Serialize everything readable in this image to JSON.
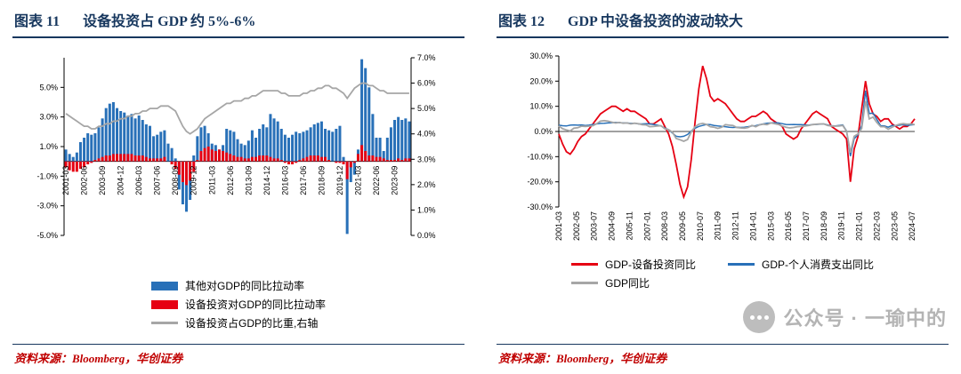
{
  "panels": [
    {
      "figure_label": "图表 11",
      "title": "设备投资占 GDP 约 5%-6%",
      "source": "资料来源：Bloomberg，华创证券"
    },
    {
      "figure_label": "图表 12",
      "title": "GDP 中设备投资的波动较大",
      "source": "资料来源：Bloomberg，华创证券",
      "watermark": "公众号 · 一瑜中的"
    }
  ],
  "colors": {
    "header_navy": "#17375E",
    "bar_blue": "#2870B8",
    "red": "#E60012",
    "gray": "#A6A6A6",
    "source_red": "#C00000",
    "watermark_gray": "#A8A8A8"
  },
  "chart_data": [
    {
      "type": "bar+line",
      "title": "设备投资占 GDP 约 5%-6%",
      "x_freq": "quarterly",
      "x_start": "2001-03",
      "x_tick_every": 5,
      "x_tick_labels": [
        "2001-03",
        "2002-06",
        "2003-09",
        "2004-12",
        "2006-03",
        "2007-06",
        "2008-09",
        "2009-12",
        "2011-03",
        "2012-06",
        "2013-09",
        "2014-12",
        "2016-03",
        "2017-06",
        "2018-09",
        "2019-12",
        "2021-03",
        "2022-06",
        "2023-09"
      ],
      "left_axis": {
        "min": -5,
        "max": 7,
        "ticks": [
          5,
          3,
          1,
          -1,
          -3,
          -5
        ],
        "format": "percent1"
      },
      "right_axis": {
        "min": 0,
        "max": 7,
        "ticks": [
          7,
          6,
          5,
          4,
          3,
          2,
          1,
          0
        ],
        "format": "percent1"
      },
      "legend_rows": [
        [
          0
        ],
        [
          1
        ],
        [
          2
        ]
      ],
      "series": [
        {
          "name": "其他对GDP的同比拉动率",
          "kind": "bar",
          "axis": "left",
          "color": "#2870B8",
          "values": [
            0.8,
            0.5,
            0.3,
            0.6,
            1.3,
            1.6,
            1.9,
            1.8,
            1.9,
            2.3,
            2.9,
            3.6,
            3.9,
            4.0,
            3.6,
            3.4,
            3.3,
            3.1,
            3.2,
            2.9,
            3.1,
            2.8,
            2.5,
            2.4,
            1.7,
            1.8,
            2.0,
            2.1,
            1.2,
            0.9,
            0.2,
            -1.9,
            -2.9,
            -3.4,
            -2.6,
            0.4,
            1.7,
            2.3,
            2.4,
            1.9,
            1.2,
            1.1,
            0.8,
            1.1,
            2.2,
            2.1,
            2.0,
            1.5,
            1.2,
            1.1,
            1.4,
            2.1,
            1.6,
            2.2,
            2.5,
            2.3,
            3.2,
            2.9,
            2.7,
            2.2,
            1.8,
            1.6,
            1.8,
            2.0,
            1.9,
            2.0,
            2.1,
            2.3,
            2.5,
            2.6,
            2.7,
            2.2,
            2.1,
            2.0,
            2.2,
            2.4,
            0.3,
            -4.9,
            -1.4,
            -0.9,
            0.8,
            6.9,
            6.3,
            5.0,
            3.2,
            1.6,
            1.6,
            0.7,
            1.6,
            2.3,
            2.8,
            3.0,
            2.8,
            2.9,
            2.7
          ]
        },
        {
          "name": "设备投资对GDP的同比拉动率",
          "kind": "bar",
          "axis": "left",
          "color": "#E60012",
          "values": [
            -0.4,
            -0.6,
            -0.7,
            -0.7,
            -0.5,
            -0.4,
            -0.2,
            -0.1,
            0.1,
            0.2,
            0.3,
            0.4,
            0.4,
            0.5,
            0.5,
            0.5,
            0.5,
            0.5,
            0.5,
            0.4,
            0.4,
            0.4,
            0.3,
            0.2,
            0.2,
            0.2,
            0.2,
            0.3,
            0.0,
            -0.2,
            -0.5,
            -0.9,
            -1.4,
            -1.6,
            -1.3,
            -0.7,
            0.1,
            0.7,
            0.9,
            1.0,
            0.8,
            0.7,
            0.8,
            0.7,
            0.6,
            0.5,
            0.4,
            0.3,
            0.3,
            0.2,
            0.2,
            0.3,
            0.3,
            0.4,
            0.4,
            0.4,
            0.3,
            0.2,
            0.2,
            0.1,
            -0.1,
            -0.2,
            -0.2,
            -0.1,
            0.1,
            0.2,
            0.3,
            0.4,
            0.4,
            0.4,
            0.3,
            0.3,
            0.1,
            0.0,
            -0.1,
            -0.1,
            -0.2,
            -1.2,
            -0.4,
            -0.1,
            0.5,
            1.1,
            0.7,
            0.4,
            0.4,
            0.3,
            0.3,
            0.2,
            0.1,
            0.1,
            0.1,
            0.2,
            0.1,
            0.2,
            0.2
          ]
        },
        {
          "name": "设备投资占GDP的比重,右轴",
          "kind": "line",
          "axis": "right",
          "color": "#A6A6A6",
          "values": [
            4.8,
            4.7,
            4.6,
            4.5,
            4.4,
            4.3,
            4.3,
            4.2,
            4.2,
            4.3,
            4.3,
            4.4,
            4.4,
            4.5,
            4.5,
            4.6,
            4.6,
            4.7,
            4.7,
            4.8,
            4.8,
            4.9,
            4.9,
            5.0,
            5.0,
            5.0,
            5.1,
            5.1,
            5.1,
            5.0,
            4.9,
            4.6,
            4.3,
            4.1,
            4.0,
            4.1,
            4.2,
            4.4,
            4.6,
            4.7,
            4.8,
            4.9,
            5.0,
            5.1,
            5.2,
            5.2,
            5.3,
            5.3,
            5.3,
            5.4,
            5.4,
            5.5,
            5.5,
            5.6,
            5.7,
            5.7,
            5.7,
            5.7,
            5.7,
            5.6,
            5.6,
            5.5,
            5.5,
            5.5,
            5.5,
            5.6,
            5.6,
            5.7,
            5.7,
            5.8,
            5.8,
            5.9,
            5.9,
            5.8,
            5.8,
            5.7,
            5.6,
            5.4,
            5.6,
            5.8,
            5.9,
            6.0,
            6.0,
            5.9,
            5.9,
            5.8,
            5.7,
            5.7,
            5.6,
            5.6,
            5.6,
            5.6,
            5.6,
            5.6,
            5.6
          ]
        }
      ]
    },
    {
      "type": "line",
      "title": "GDP 中设备投资的波动较大",
      "x_freq": "quarterly",
      "x_start": "2001-03",
      "x_tick_labels": [
        "2001-03",
        "2002-05",
        "2003-07",
        "2004-09",
        "2005-11",
        "2007-01",
        "2008-03",
        "2009-05",
        "2010-07",
        "2011-09",
        "2012-11",
        "2014-01",
        "2015-03",
        "2016-05",
        "2017-07",
        "2018-09",
        "2019-11",
        "2021-01",
        "2022-03",
        "2023-05",
        "2024-07"
      ],
      "y_axis": {
        "min": -30,
        "max": 30,
        "ticks": [
          30,
          20,
          10,
          0,
          -10,
          -20,
          -30
        ],
        "format": "percent1"
      },
      "legend_rows": [
        [
          0,
          1
        ],
        [
          2
        ]
      ],
      "series": [
        {
          "name": "GDP-设备投资同比",
          "kind": "line",
          "color": "#E60012",
          "values": [
            -1,
            -5,
            -8,
            -9,
            -7,
            -4,
            -2,
            -1,
            1,
            3,
            5,
            7,
            8,
            9,
            10,
            10,
            9,
            8,
            9,
            8,
            8,
            7,
            6,
            5,
            3,
            3,
            4,
            5,
            2,
            -1,
            -6,
            -13,
            -21,
            -26,
            -22,
            -11,
            4,
            17,
            26,
            21,
            14,
            12,
            13,
            12,
            11,
            9,
            7,
            5,
            4,
            4,
            5,
            6,
            6,
            7,
            8,
            7,
            5,
            4,
            3,
            2,
            -1,
            -2,
            -3,
            -2,
            1,
            3,
            5,
            7,
            8,
            7,
            6,
            5,
            2,
            1,
            0,
            -1,
            -3,
            -20,
            -7,
            -2,
            9,
            20,
            11,
            7,
            6,
            4,
            5,
            5,
            3,
            2,
            1,
            2,
            2,
            3,
            5
          ]
        },
        {
          "name": "GDP-个人消费支出同比",
          "kind": "line",
          "color": "#2870B8",
          "values": [
            2.5,
            2.3,
            2.2,
            2.5,
            2.6,
            2.5,
            2.6,
            2.4,
            2.5,
            2.8,
            3.0,
            3.2,
            3.3,
            3.4,
            3.5,
            3.6,
            3.5,
            3.4,
            3.4,
            3.2,
            3.3,
            3.0,
            3.0,
            3.1,
            3.0,
            2.8,
            2.5,
            2.2,
            1.4,
            0.7,
            -0.6,
            -1.9,
            -2.1,
            -1.9,
            -1.2,
            0.2,
            1.3,
            2.0,
            2.4,
            2.8,
            2.7,
            2.4,
            2.2,
            2.0,
            1.9,
            1.7,
            1.6,
            1.7,
            1.6,
            1.7,
            1.9,
            2.2,
            2.3,
            2.7,
            3.0,
            3.3,
            3.4,
            3.5,
            3.4,
            3.1,
            2.8,
            2.7,
            2.8,
            2.7,
            2.7,
            2.6,
            2.5,
            2.8,
            2.8,
            2.9,
            3.0,
            2.6,
            2.3,
            2.2,
            2.4,
            2.6,
            0.2,
            -9.8,
            -2.9,
            -1.3,
            2.4,
            16.2,
            7.1,
            7.3,
            4.8,
            2.3,
            2.2,
            1.7,
            2.4,
            2.3,
            2.5,
            2.7,
            2.4,
            2.6,
            2.7
          ]
        },
        {
          "name": "GDP同比",
          "kind": "line",
          "color": "#A6A6A6",
          "values": [
            2.2,
            1.1,
            0.6,
            0.2,
            1.3,
            1.5,
            2.1,
            2.0,
            2.1,
            2.3,
            3.1,
            4.1,
            4.3,
            4.1,
            3.7,
            3.4,
            3.6,
            3.3,
            3.4,
            3.0,
            3.3,
            3.1,
            2.7,
            2.6,
            1.9,
            2.0,
            2.2,
            2.3,
            1.1,
            0.7,
            -0.3,
            -2.8,
            -3.3,
            -3.9,
            -3.2,
            -0.1,
            1.9,
            2.9,
            3.2,
            2.8,
            1.9,
            1.7,
            1.2,
            1.7,
            2.7,
            2.5,
            2.4,
            1.6,
            1.4,
            1.3,
            1.6,
            2.4,
            1.9,
            2.6,
            2.9,
            2.7,
            3.4,
            3.1,
            2.8,
            2.2,
            1.7,
            1.4,
            1.6,
            1.9,
            2.0,
            2.2,
            2.4,
            2.7,
            2.9,
            3.0,
            3.0,
            2.4,
            2.2,
            2.1,
            2.2,
            2.4,
            0.1,
            -8.4,
            -1.9,
            -1.0,
            1.2,
            12.1,
            5.0,
            5.7,
            3.6,
            1.9,
            1.9,
            0.9,
            1.7,
            2.4,
            2.9,
            3.1,
            2.9,
            3.0,
            2.7
          ]
        }
      ]
    }
  ]
}
